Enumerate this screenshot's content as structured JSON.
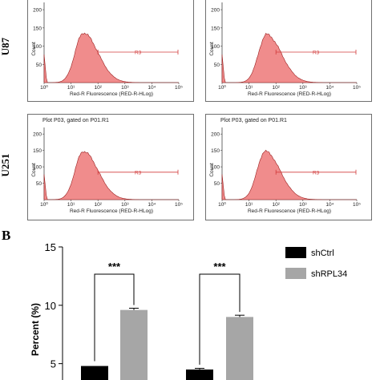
{
  "row_labels": {
    "top": "U87",
    "bottom": "U251"
  },
  "panel_b_label": "B",
  "histograms": [
    {
      "id": "u87-left",
      "plot_title": "",
      "ylabel": "Count",
      "xlabel": "Red-R Fluorescence (RED-R-HLog)",
      "gate": "R3",
      "y_ticks": [
        "50",
        "100",
        "150",
        "200"
      ],
      "x_ticks": [
        "10⁰",
        "10¹",
        "10²",
        "10³",
        "10⁴",
        "10⁵"
      ]
    },
    {
      "id": "u87-right",
      "plot_title": "",
      "ylabel": "Count",
      "xlabel": "Red-R Fluorescence (RED-R-HLog)",
      "gate": "R3",
      "y_ticks": [
        "50",
        "100",
        "150",
        "200"
      ],
      "x_ticks": [
        "10⁰",
        "10¹",
        "10²",
        "10³",
        "10⁴",
        "10⁵"
      ]
    },
    {
      "id": "u251-left",
      "plot_title": "Plot P03, gated on P01.R1",
      "ylabel": "Count",
      "xlabel": "Red-R Fluorescence (RED-R-HLog)",
      "gate": "R3",
      "y_ticks": [
        "50",
        "100",
        "150",
        "200"
      ],
      "x_ticks": [
        "10⁰",
        "10¹",
        "10²",
        "10³",
        "10⁴",
        "10⁵"
      ]
    },
    {
      "id": "u251-right",
      "plot_title": "Plot P03, gated on P01.R1",
      "ylabel": "Count",
      "xlabel": "Red-R Fluorescence (RED-R-HLog)",
      "gate": "R3",
      "y_ticks": [
        "50",
        "100",
        "150",
        "200"
      ],
      "x_ticks": [
        "10⁰",
        "10¹",
        "10²",
        "10³",
        "10⁴",
        "10⁵"
      ]
    }
  ],
  "colors": {
    "histogram_fill": "#f08c8c",
    "histogram_line": "#9a1f1f",
    "gate": "#d23b3b",
    "shCtrl": "#000000",
    "shRPL34": "#a6a6a6",
    "frame": "#6f6f6f"
  },
  "chart_data": {
    "type": "bar",
    "ylabel": "Percent (%)",
    "y_ticks": [
      5,
      10,
      15
    ],
    "ylim": [
      3.6,
      15
    ],
    "categories": [
      "",
      ""
    ],
    "series": [
      {
        "name": "shCtrl",
        "values": [
          4.8,
          4.5
        ],
        "errors": [
          0.0,
          0.1
        ]
      },
      {
        "name": "shRPL34",
        "values": [
          9.6,
          9.0
        ],
        "errors": [
          0.15,
          0.15
        ]
      }
    ],
    "significance": [
      "***",
      "***"
    ],
    "legend_position": "top-right"
  }
}
